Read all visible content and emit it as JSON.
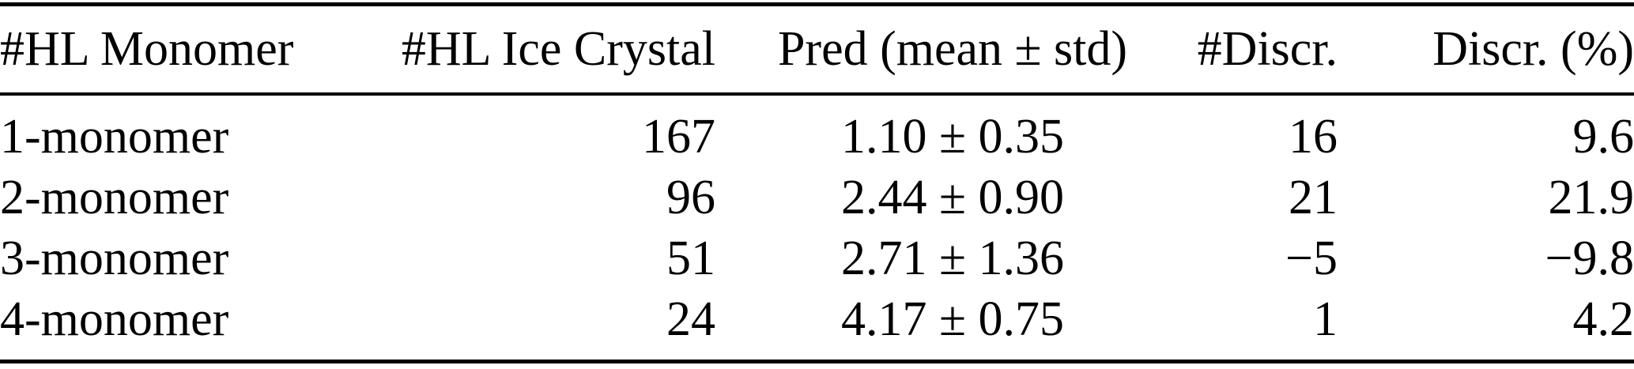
{
  "colors": {
    "background": "#ffffff",
    "text": "#000000",
    "rule": "#000000"
  },
  "table": {
    "columns": [
      {
        "label": "#HL Monomer",
        "align": "left"
      },
      {
        "label": "#HL Ice Crystal",
        "align": "right"
      },
      {
        "label": "Pred (mean ± std)",
        "align": "center"
      },
      {
        "label": "#Discr.",
        "align": "right"
      },
      {
        "label": "Discr. (%)",
        "align": "right"
      }
    ],
    "rows": [
      [
        "1-monomer",
        "167",
        "1.10 ± 0.35",
        "16",
        "9.6"
      ],
      [
        "2-monomer",
        "96",
        "2.44 ± 0.90",
        "21",
        "21.9"
      ],
      [
        "3-monomer",
        "51",
        "2.71 ± 1.36",
        "−5",
        "−9.8"
      ],
      [
        "4-monomer",
        "24",
        "4.17 ± 0.75",
        "1",
        "4.2"
      ]
    ]
  }
}
